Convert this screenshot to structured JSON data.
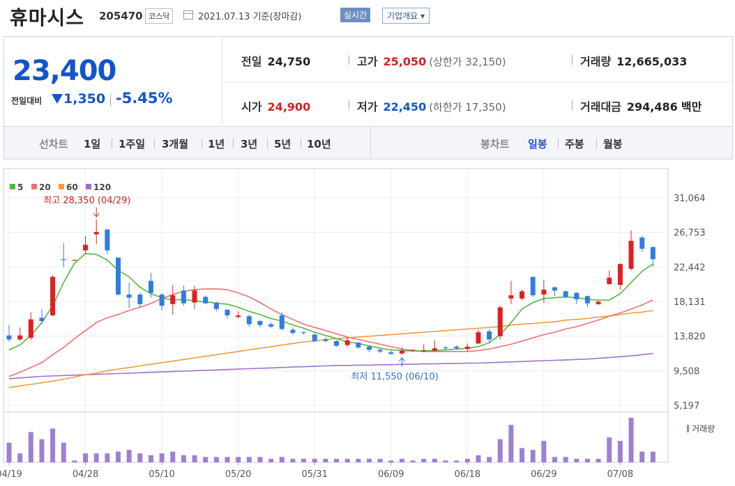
{
  "header": {
    "stock_name": "휴마시스",
    "stock_code": "205470",
    "market": "코스닥",
    "date_text": "2021.07.13 기준(장마감)",
    "realtime_label": "실시간",
    "company_label": "기업개요 ▾"
  },
  "quote": {
    "price": "23,400",
    "change_label": "전일대비",
    "change_value": "1,350",
    "change_pct": "-5.45%",
    "prev_label": "전일",
    "prev_value": "24,750",
    "high_label": "고가",
    "high_value": "25,050",
    "upper_limit": "(상한가 32,150)",
    "volume_label": "거래량",
    "volume_value": "12,665,033",
    "open_label": "시가",
    "open_value": "24,900",
    "low_label": "저가",
    "low_value": "22,450",
    "lower_limit": "(하한가 17,350)",
    "amount_label": "거래대금",
    "amount_value": "294,486",
    "amount_unit": "백만"
  },
  "periods": {
    "line_label": "선차트",
    "items": [
      "1일",
      "1주일",
      "3개월",
      "1년",
      "3년",
      "5년",
      "10년"
    ],
    "candle_label": "봉차트",
    "candle_items": [
      "일봉",
      "주봉",
      "월봉"
    ]
  },
  "colors": {
    "up": "#e02020",
    "down": "#2f7de1",
    "ma5": "#4cbb3a",
    "ma20": "#f07070",
    "ma60": "#f49a3a",
    "ma120": "#a070d0"
  },
  "chart_data": {
    "type": "candlestick",
    "legend": [
      "5",
      "20",
      "60",
      "120"
    ],
    "y_ticks": [
      "31,064",
      "26,753",
      "22,442",
      "18,131",
      "13,820",
      "9,508",
      "5,197"
    ],
    "ylim": [
      5197,
      31064
    ],
    "x_labels": [
      {
        "label": "04/19",
        "index": 0
      },
      {
        "label": "04/28",
        "index": 7
      },
      {
        "label": "05/10",
        "index": 14
      },
      {
        "label": "05/20",
        "index": 21
      },
      {
        "label": "05/31",
        "index": 28
      },
      {
        "label": "06/09",
        "index": 35
      },
      {
        "label": "06/18",
        "index": 42
      },
      {
        "label": "06/29",
        "index": 49
      },
      {
        "label": "07/08",
        "index": 56
      }
    ],
    "high_annotation": {
      "text": "최고 28,350 (04/29)",
      "index": 8,
      "value": 28350
    },
    "low_annotation": {
      "text": "최저 11,550 (06/10)",
      "index": 36,
      "value": 11550
    },
    "volume_label": "거래량",
    "candles": [
      {
        "o": 13900,
        "c": 13400,
        "h": 15200,
        "l": 13100,
        "v": 11
      },
      {
        "o": 13400,
        "c": 13900,
        "h": 14900,
        "l": 13200,
        "v": 5
      },
      {
        "o": 13600,
        "c": 15900,
        "h": 16800,
        "l": 13300,
        "v": 17
      },
      {
        "o": 16100,
        "c": 15700,
        "h": 17200,
        "l": 15300,
        "v": 13
      },
      {
        "o": 16400,
        "c": 21200,
        "h": 21400,
        "l": 16300,
        "v": 19
      },
      {
        "o": 23400,
        "c": 23300,
        "h": 25400,
        "l": 22400,
        "v": 11
      },
      {
        "o": 23300,
        "c": 23300,
        "h": 23400,
        "l": 23200,
        "v": 1
      },
      {
        "o": 24500,
        "c": 25200,
        "h": 26300,
        "l": 24000,
        "v": 5
      },
      {
        "o": 26500,
        "c": 26800,
        "h": 28350,
        "l": 25300,
        "v": 5
      },
      {
        "o": 27100,
        "c": 24500,
        "h": 27200,
        "l": 24000,
        "v": 5
      },
      {
        "o": 23600,
        "c": 19000,
        "h": 23600,
        "l": 18900,
        "v": 6
      },
      {
        "o": 19000,
        "c": 18600,
        "h": 20500,
        "l": 17300,
        "v": 7
      },
      {
        "o": 19000,
        "c": 17800,
        "h": 19200,
        "l": 17400,
        "v": 5
      },
      {
        "o": 20700,
        "c": 19200,
        "h": 21700,
        "l": 18600,
        "v": 4
      },
      {
        "o": 19000,
        "c": 17600,
        "h": 19200,
        "l": 17000,
        "v": 5
      },
      {
        "o": 17800,
        "c": 18900,
        "h": 20200,
        "l": 16500,
        "v": 6
      },
      {
        "o": 19500,
        "c": 17900,
        "h": 20100,
        "l": 17600,
        "v": 4
      },
      {
        "o": 18000,
        "c": 19500,
        "h": 20100,
        "l": 17200,
        "v": 4
      },
      {
        "o": 18700,
        "c": 17900,
        "h": 18900,
        "l": 17800,
        "v": 3
      },
      {
        "o": 18000,
        "c": 17200,
        "h": 18100,
        "l": 16900,
        "v": 3
      },
      {
        "o": 17100,
        "c": 16400,
        "h": 17200,
        "l": 16000,
        "v": 3
      },
      {
        "o": 16200,
        "c": 16400,
        "h": 16900,
        "l": 16000,
        "v": 3
      },
      {
        "o": 16300,
        "c": 15300,
        "h": 16500,
        "l": 15000,
        "v": 3
      },
      {
        "o": 15700,
        "c": 15200,
        "h": 15800,
        "l": 14900,
        "v": 3
      },
      {
        "o": 15300,
        "c": 15000,
        "h": 15500,
        "l": 14800,
        "v": 2
      },
      {
        "o": 16400,
        "c": 14700,
        "h": 16800,
        "l": 14500,
        "v": 3
      },
      {
        "o": 14600,
        "c": 14200,
        "h": 14900,
        "l": 14000,
        "v": 2
      },
      {
        "o": 14300,
        "c": 14200,
        "h": 14400,
        "l": 14000,
        "v": 2
      },
      {
        "o": 14000,
        "c": 13200,
        "h": 14200,
        "l": 13100,
        "v": 2
      },
      {
        "o": 13400,
        "c": 13200,
        "h": 13700,
        "l": 13000,
        "v": 2
      },
      {
        "o": 13200,
        "c": 12600,
        "h": 13300,
        "l": 12500,
        "v": 2
      },
      {
        "o": 12700,
        "c": 13300,
        "h": 13600,
        "l": 12500,
        "v": 2
      },
      {
        "o": 13000,
        "c": 12400,
        "h": 13100,
        "l": 12200,
        "v": 2
      },
      {
        "o": 12500,
        "c": 12100,
        "h": 12700,
        "l": 11800,
        "v": 2
      },
      {
        "o": 12100,
        "c": 11900,
        "h": 12300,
        "l": 11700,
        "v": 2
      },
      {
        "o": 11800,
        "c": 11600,
        "h": 12000,
        "l": 11500,
        "v": 1
      },
      {
        "o": 11650,
        "c": 12000,
        "h": 12400,
        "l": 11550,
        "v": 2
      },
      {
        "o": 12000,
        "c": 12100,
        "h": 12200,
        "l": 11900,
        "v": 1
      },
      {
        "o": 12000,
        "c": 12000,
        "h": 12800,
        "l": 11800,
        "v": 2
      },
      {
        "o": 12000,
        "c": 12300,
        "h": 13300,
        "l": 11900,
        "v": 2
      },
      {
        "o": 12400,
        "c": 12300,
        "h": 12600,
        "l": 12100,
        "v": 1
      },
      {
        "o": 12500,
        "c": 12300,
        "h": 12700,
        "l": 12100,
        "v": 1
      },
      {
        "o": 12200,
        "c": 12500,
        "h": 12900,
        "l": 11900,
        "v": 2
      },
      {
        "o": 12900,
        "c": 14300,
        "h": 14600,
        "l": 12800,
        "v": 4
      },
      {
        "o": 14400,
        "c": 13400,
        "h": 14700,
        "l": 12900,
        "v": 3
      },
      {
        "o": 13800,
        "c": 17400,
        "h": 17600,
        "l": 13400,
        "v": 13
      },
      {
        "o": 18500,
        "c": 18900,
        "h": 20700,
        "l": 17800,
        "v": 21
      },
      {
        "o": 18500,
        "c": 19400,
        "h": 19600,
        "l": 18300,
        "v": 8
      },
      {
        "o": 21200,
        "c": 18900,
        "h": 21200,
        "l": 18700,
        "v": 7
      },
      {
        "o": 19000,
        "c": 19600,
        "h": 20800,
        "l": 18000,
        "v": 12
      },
      {
        "o": 19900,
        "c": 19500,
        "h": 20000,
        "l": 18800,
        "v": 3
      },
      {
        "o": 19400,
        "c": 18700,
        "h": 19500,
        "l": 18600,
        "v": 3
      },
      {
        "o": 19200,
        "c": 18400,
        "h": 19300,
        "l": 17800,
        "v": 2
      },
      {
        "o": 18800,
        "c": 17900,
        "h": 18900,
        "l": 17400,
        "v": 2
      },
      {
        "o": 17800,
        "c": 18100,
        "h": 18300,
        "l": 17700,
        "v": 2
      },
      {
        "o": 20300,
        "c": 21100,
        "h": 22000,
        "l": 20200,
        "v": 14
      },
      {
        "o": 20200,
        "c": 22800,
        "h": 22900,
        "l": 19600,
        "v": 12
      },
      {
        "o": 22200,
        "c": 25700,
        "h": 27000,
        "l": 22000,
        "v": 25
      },
      {
        "o": 26100,
        "c": 24700,
        "h": 26300,
        "l": 24300,
        "v": 6
      },
      {
        "o": 24900,
        "c": 23400,
        "h": 25050,
        "l": 22450,
        "v": 6
      }
    ],
    "ma5": [
      12100,
      12700,
      13900,
      15500,
      17600,
      20500,
      22900,
      24100,
      24000,
      23300,
      22000,
      21200,
      19900,
      19100,
      18600,
      18300,
      18400,
      18200,
      18100,
      17900,
      17800,
      17400,
      16900,
      16500,
      16000,
      15700,
      15200,
      14800,
      14300,
      13900,
      13500,
      13100,
      12900,
      12600,
      12300,
      12100,
      12000,
      11950,
      12000,
      12000,
      12100,
      12200,
      12300,
      12500,
      13000,
      14000,
      15500,
      17200,
      18000,
      18500,
      18600,
      18700,
      18600,
      18400,
      18300,
      18300,
      19100,
      20500,
      21900,
      22800
    ],
    "ma20": [
      8800,
      9300,
      9900,
      10500,
      11500,
      12400,
      13500,
      14500,
      15500,
      16100,
      16500,
      17000,
      17400,
      17900,
      18500,
      19000,
      19400,
      19600,
      19700,
      19700,
      19600,
      19200,
      18700,
      18000,
      17200,
      16500,
      15900,
      15300,
      14900,
      14500,
      14100,
      13700,
      13400,
      13100,
      12800,
      12500,
      12200,
      12000,
      11900,
      11900,
      11900,
      11900,
      11900,
      12000,
      12200,
      12500,
      12800,
      13200,
      13600,
      14000,
      14300,
      14700,
      15000,
      15400,
      15800,
      16300,
      16700,
      17200,
      17700,
      18300
    ],
    "ma60": [
      7400,
      7600,
      7800,
      8000,
      8200,
      8450,
      8700,
      9000,
      9200,
      9500,
      9700,
      9900,
      10100,
      10300,
      10500,
      10700,
      10900,
      11100,
      11300,
      11500,
      11700,
      11900,
      12100,
      12300,
      12500,
      12700,
      12900,
      13100,
      13200,
      13400,
      13500,
      13600,
      13700,
      13800,
      13900,
      14000,
      14100,
      14200,
      14300,
      14400,
      14500,
      14600,
      14700,
      14800,
      14900,
      15000,
      15200,
      15300,
      15400,
      15500,
      15600,
      15800,
      15900,
      16000,
      16200,
      16300,
      16500,
      16700,
      16800,
      17000
    ],
    "ma120": [
      8500,
      8600,
      8700,
      8800,
      8850,
      8900,
      8950,
      9000,
      9050,
      9100,
      9150,
      9200,
      9250,
      9300,
      9350,
      9400,
      9450,
      9500,
      9550,
      9600,
      9650,
      9700,
      9750,
      9800,
      9850,
      9900,
      9950,
      10000,
      10050,
      10100,
      10150,
      10150,
      10200,
      10200,
      10250,
      10250,
      10300,
      10300,
      10350,
      10350,
      10400,
      10400,
      10450,
      10450,
      10500,
      10550,
      10600,
      10650,
      10700,
      10750,
      10800,
      10850,
      10900,
      10950,
      11050,
      11150,
      11250,
      11350,
      11500,
      11650
    ]
  }
}
